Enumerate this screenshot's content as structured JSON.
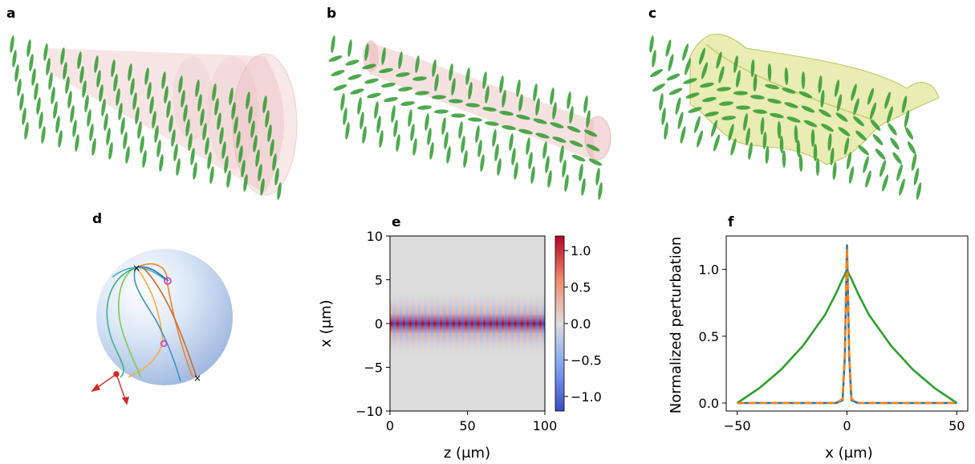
{
  "panels": {
    "a": "a",
    "b": "b",
    "c": "c",
    "d": "d",
    "e": "e",
    "f": "f"
  },
  "colors": {
    "director_green": "#2e9a2e",
    "tube_pink": "#e8b4b4",
    "sheet_yellow": "#d7dd74",
    "sphere_blue": "#c6d8f0",
    "line_blue": "#1f77b4",
    "line_orange": "#ff7f0e",
    "line_green": "#2ca02c",
    "marker_magenta": "#cc33cc",
    "axes_red": "#d62728"
  },
  "chart_data": [
    {
      "panel": "e",
      "type": "heatmap",
      "title": "",
      "xlabel": "z (μm)",
      "ylabel": "x (μm)",
      "xlim": [
        0,
        100
      ],
      "ylim": [
        -10,
        10
      ],
      "xticks": [
        "0",
        "50",
        "100"
      ],
      "yticks": [
        "10",
        "5",
        "0",
        "−5",
        "−10"
      ],
      "colorbar": {
        "range": [
          -1.2,
          1.2
        ],
        "ticks": [
          "1.0",
          "0.5",
          "0.0",
          "−0.5",
          "−1.0"
        ],
        "colormap": "coolwarm"
      },
      "field": {
        "description_axis": "stripes",
        "num_periods": 25,
        "amplitude": 1.2,
        "half_width": 2
      }
    },
    {
      "panel": "f",
      "type": "line",
      "title": "",
      "xlabel": "x (μm)",
      "ylabel": "Normalized perturbation",
      "xlim": [
        -55,
        55
      ],
      "ylim": [
        -0.06,
        1.25
      ],
      "xticks": [
        "−50",
        "0",
        "50"
      ],
      "yticks": [
        "1.0",
        "0.5",
        "0.0"
      ],
      "x": [
        -50,
        -40,
        -30,
        -20,
        -10,
        -5,
        -2,
        -1,
        0,
        1,
        2,
        5,
        10,
        20,
        30,
        40,
        50
      ],
      "series": [
        {
          "values": [
            0,
            0,
            0,
            0,
            0,
            0,
            0.02,
            0.35,
            1.18,
            0.35,
            0.02,
            0,
            0,
            0,
            0,
            0,
            0
          ],
          "style": "solid"
        },
        {
          "values": [
            0,
            0,
            0,
            0,
            0,
            0,
            0.03,
            0.38,
            1.16,
            0.38,
            0.03,
            0,
            0,
            0,
            0,
            0,
            0
          ],
          "style": "dashed"
        },
        {
          "values": [
            0,
            0.11,
            0.25,
            0.43,
            0.66,
            0.82,
            0.93,
            0.96,
            1.0,
            0.96,
            0.93,
            0.82,
            0.66,
            0.43,
            0.25,
            0.11,
            0
          ]
        }
      ]
    }
  ]
}
